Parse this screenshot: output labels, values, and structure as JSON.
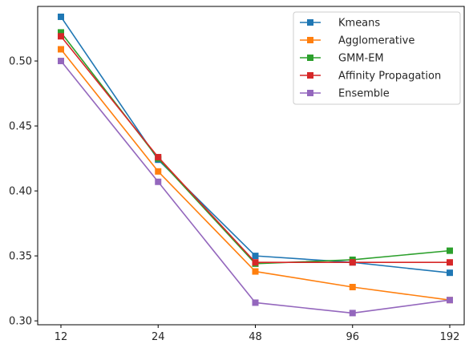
{
  "chart_data": {
    "type": "line",
    "categories": [
      "12",
      "24",
      "48",
      "96",
      "192"
    ],
    "ylim": [
      0.297,
      0.542
    ],
    "yticks": [
      0.3,
      0.35,
      0.4,
      0.45,
      0.5
    ],
    "ytick_labels": [
      "0.30",
      "0.35",
      "0.40",
      "0.45",
      "0.50"
    ],
    "grid": false,
    "legend_position": "top-right",
    "series": [
      {
        "name": "Kmeans",
        "color": "#1f77b4",
        "values": [
          0.534,
          0.424,
          0.35,
          0.345,
          0.337
        ]
      },
      {
        "name": "Agglomerative",
        "color": "#ff7f0e",
        "values": [
          0.509,
          0.415,
          0.338,
          0.326,
          0.316
        ]
      },
      {
        "name": "GMM-EM",
        "color": "#2ca02c",
        "values": [
          0.522,
          0.425,
          0.344,
          0.347,
          0.354
        ]
      },
      {
        "name": "Affinity Propagation",
        "color": "#d62728",
        "values": [
          0.519,
          0.426,
          0.345,
          0.345,
          0.345
        ]
      },
      {
        "name": "Ensemble",
        "color": "#9467bd",
        "values": [
          0.5,
          0.407,
          0.314,
          0.306,
          0.316
        ]
      }
    ],
    "marker": "square"
  }
}
